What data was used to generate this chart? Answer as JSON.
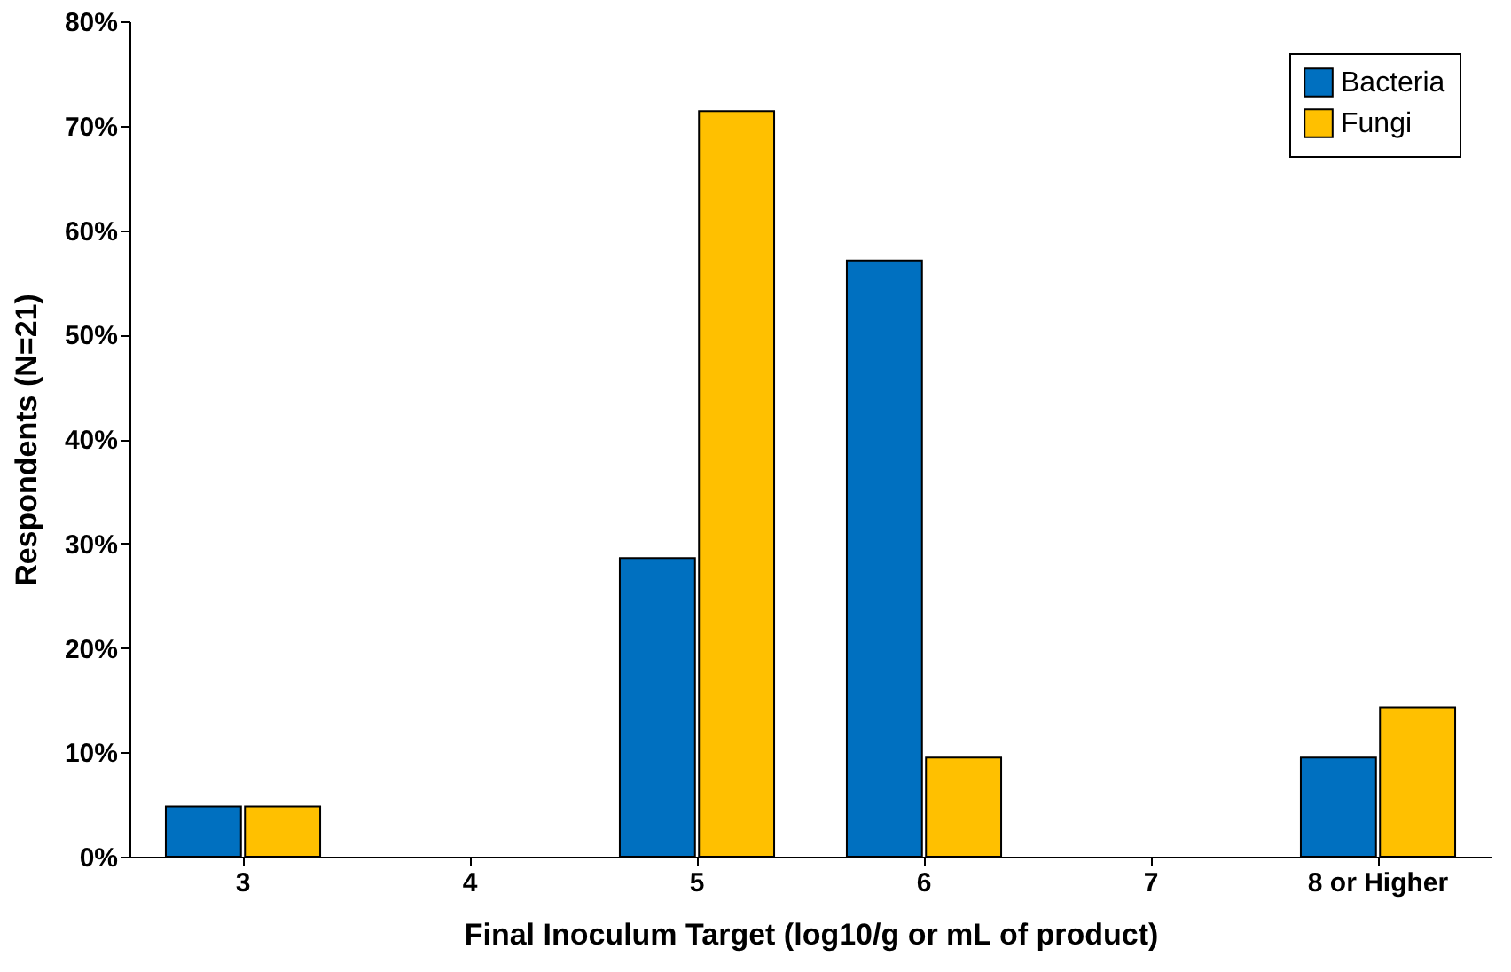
{
  "chart_data": {
    "type": "bar",
    "xlabel": "Final Inoculum Target (log10/g or mL of product)",
    "ylabel": "Respondents (N=21)",
    "categories": [
      "3",
      "4",
      "5",
      "6",
      "7",
      "8 or Higher"
    ],
    "series": [
      {
        "name": "Bacteria",
        "color": "#0070c0",
        "values": [
          4.8,
          null,
          28.6,
          57.1,
          null,
          9.5
        ]
      },
      {
        "name": "Fungi",
        "color": "#ffc000",
        "values": [
          4.8,
          null,
          71.4,
          9.5,
          null,
          14.3
        ]
      }
    ],
    "ylim": [
      0,
      80
    ],
    "yticks": [
      {
        "value": 0,
        "label": "0%"
      },
      {
        "value": 10,
        "label": "10%"
      },
      {
        "value": 20,
        "label": "20%"
      },
      {
        "value": 30,
        "label": "30%"
      },
      {
        "value": 40,
        "label": "40%"
      },
      {
        "value": 50,
        "label": "50%"
      },
      {
        "value": 60,
        "label": "60%"
      },
      {
        "value": 70,
        "label": "70%"
      },
      {
        "value": 80,
        "label": "80%"
      }
    ],
    "grid": false,
    "legend": "top right"
  }
}
